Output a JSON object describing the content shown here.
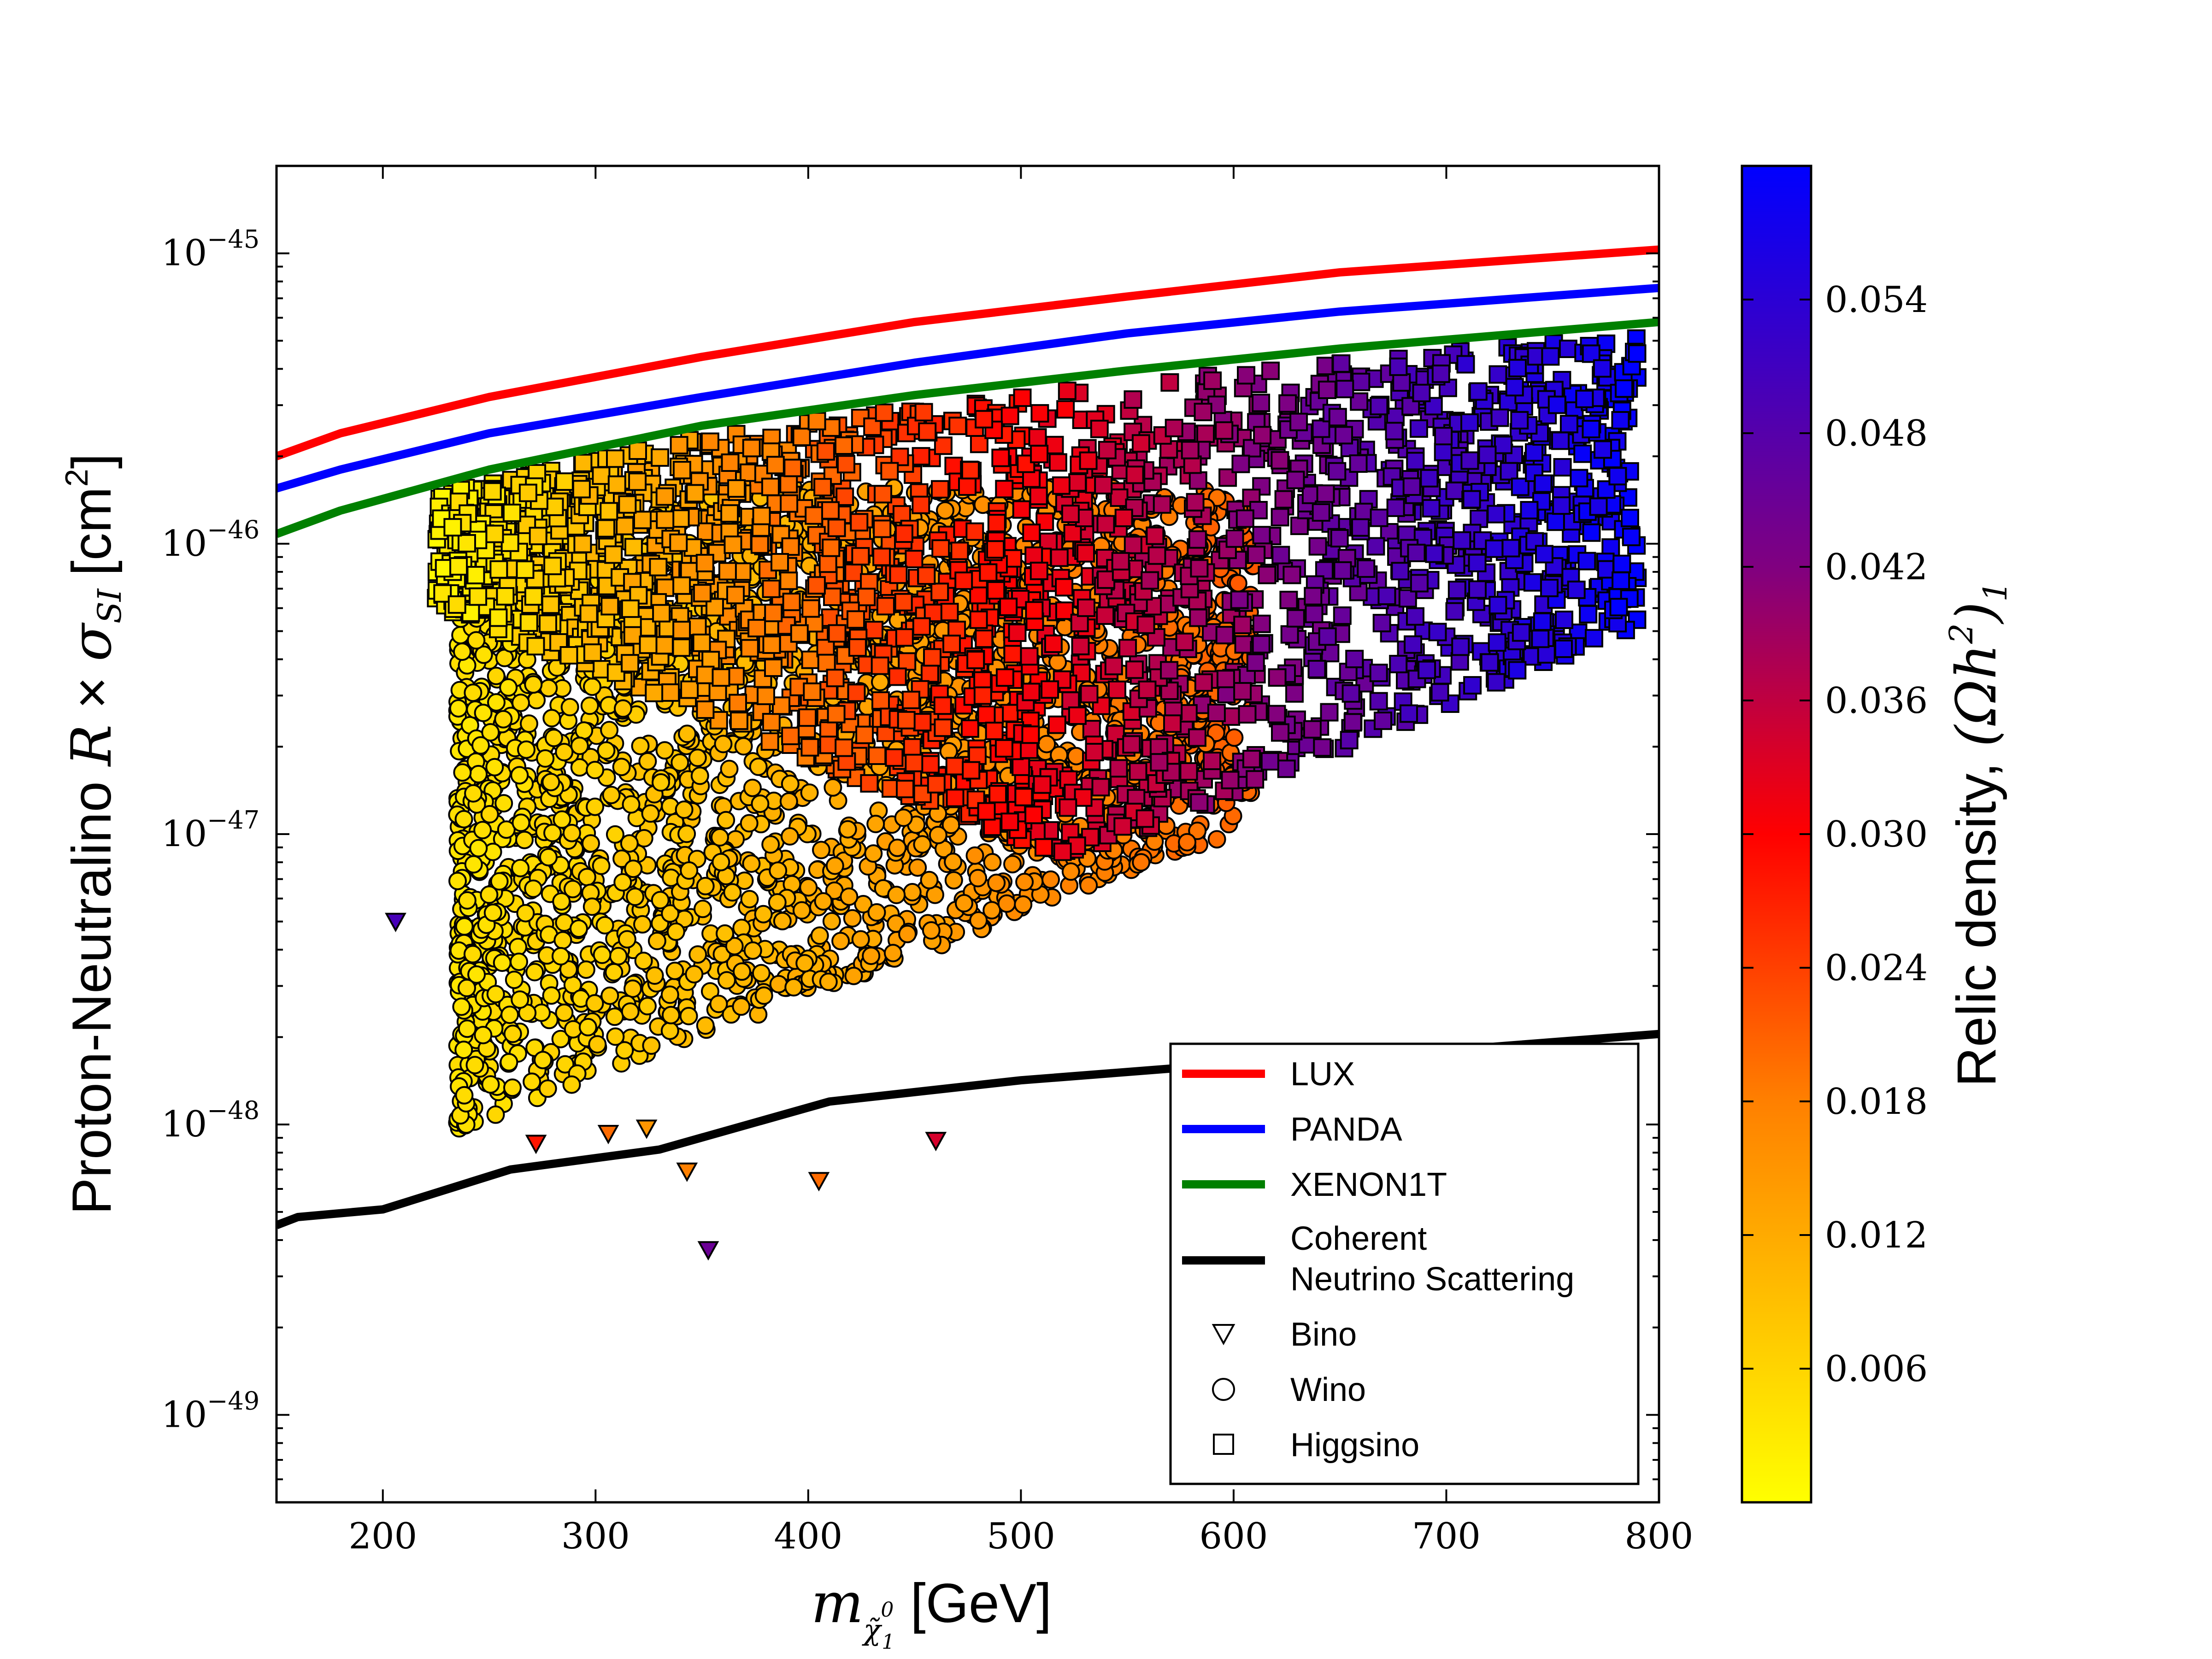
{
  "chart_data": {
    "type": "scatter",
    "xlabel_main": "m",
    "xlabel_sub": "χ̃",
    "xlabel_sub_sup": "0",
    "xlabel_sub_index": "1",
    "xlabel_unit": "[GeV]",
    "ylabel_text": "Proton-Neutralino",
    "ylabel_math_R": "R",
    "ylabel_math_times": "×",
    "ylabel_math_sigma": "σ",
    "ylabel_math_sub": "SI",
    "ylabel_unit": "[cm",
    "ylabel_unit_sup": "2",
    "ylabel_unit_close": "]",
    "yscale": "log",
    "xlim": [
      150,
      800
    ],
    "ylim": [
      5e-50,
      2e-45
    ],
    "xticks": [
      {
        "value": 200,
        "label": "200"
      },
      {
        "value": 300,
        "label": "300"
      },
      {
        "value": 400,
        "label": "400"
      },
      {
        "value": 500,
        "label": "500"
      },
      {
        "value": 600,
        "label": "600"
      },
      {
        "value": 700,
        "label": "700"
      },
      {
        "value": 800,
        "label": "800"
      }
    ],
    "yticks": [
      {
        "exp": -45,
        "base": "10",
        "sup": "−45"
      },
      {
        "exp": -46,
        "base": "10",
        "sup": "−46"
      },
      {
        "exp": -47,
        "base": "10",
        "sup": "−47"
      },
      {
        "exp": -48,
        "base": "10",
        "sup": "−48"
      },
      {
        "exp": -49,
        "base": "10",
        "sup": "−49"
      }
    ],
    "limit_curves": [
      {
        "name": "LUX",
        "color": "#ff0000",
        "points": [
          [
            150,
            2e-46
          ],
          [
            180,
            2.4e-46
          ],
          [
            250,
            3.2e-46
          ],
          [
            350,
            4.4e-46
          ],
          [
            450,
            5.8e-46
          ],
          [
            550,
            7.1e-46
          ],
          [
            650,
            8.6e-46
          ],
          [
            800,
            1.03e-45
          ]
        ]
      },
      {
        "name": "PANDA",
        "color": "#0000ff",
        "points": [
          [
            150,
            1.55e-46
          ],
          [
            180,
            1.8e-46
          ],
          [
            250,
            2.4e-46
          ],
          [
            350,
            3.2e-46
          ],
          [
            450,
            4.2e-46
          ],
          [
            550,
            5.3e-46
          ],
          [
            650,
            6.3e-46
          ],
          [
            800,
            7.6e-46
          ]
        ]
      },
      {
        "name": "XENON1T",
        "color": "#008000",
        "points": [
          [
            150,
            1.08e-46
          ],
          [
            180,
            1.3e-46
          ],
          [
            250,
            1.8e-46
          ],
          [
            350,
            2.55e-46
          ],
          [
            450,
            3.25e-46
          ],
          [
            550,
            3.95e-46
          ],
          [
            650,
            4.7e-46
          ],
          [
            800,
            5.8e-46
          ]
        ]
      },
      {
        "name": "Coherent Neutrino Scattering",
        "color": "#000000",
        "points": [
          [
            150,
            4.5e-49
          ],
          [
            160,
            4.8e-49
          ],
          [
            200,
            5.1e-49
          ],
          [
            260,
            7e-49
          ],
          [
            330,
            8.2e-49
          ],
          [
            410,
            1.2e-48
          ],
          [
            500,
            1.42e-48
          ],
          [
            600,
            1.62e-48
          ],
          [
            700,
            1.8e-48
          ],
          [
            800,
            2.05e-48
          ]
        ]
      }
    ],
    "scatter_series": [
      {
        "name": "Higgsino",
        "marker": "square",
        "x_range": [
          225,
          790
        ],
        "y_range_log": [
          -47.05,
          -45.4
        ]
      },
      {
        "name": "Wino",
        "marker": "circle",
        "x_range": [
          235,
          610
        ],
        "y_range_log": [
          -48.02,
          -45.8
        ]
      },
      {
        "name": "Bino",
        "marker": "triangle_down",
        "points": [
          {
            "x": 206,
            "y": 5e-48,
            "c": 0.05
          },
          {
            "x": 272,
            "y": 8.6e-49,
            "c": 0.028
          },
          {
            "x": 306,
            "y": 9.3e-49,
            "c": 0.02
          },
          {
            "x": 324,
            "y": 9.7e-49,
            "c": 0.015
          },
          {
            "x": 343,
            "y": 6.9e-49,
            "c": 0.018
          },
          {
            "x": 353,
            "y": 3.7e-49,
            "c": 0.045
          },
          {
            "x": 405,
            "y": 6.4e-49,
            "c": 0.02
          },
          {
            "x": 460,
            "y": 8.8e-49,
            "c": 0.034
          }
        ]
      }
    ],
    "legend": {
      "position": "lower right",
      "entries": [
        {
          "label": "LUX",
          "kind": "line",
          "color": "#ff0000"
        },
        {
          "label": "PANDA",
          "kind": "line",
          "color": "#0000ff"
        },
        {
          "label": "XENON1T",
          "kind": "line",
          "color": "#008000"
        },
        {
          "label": "Coherent",
          "label2": "Neutrino Scattering",
          "kind": "line",
          "color": "#000000"
        },
        {
          "label": "Bino",
          "kind": "marker",
          "marker": "triangle_down"
        },
        {
          "label": "Wino",
          "kind": "marker",
          "marker": "circle"
        },
        {
          "label": "Higgsino",
          "kind": "marker",
          "marker": "square"
        }
      ]
    },
    "colorbar": {
      "label_text": "Relic density,",
      "label_math": "(Ωh",
      "label_math_sup": "2",
      "label_math_close": ")",
      "label_math_sub": "1",
      "range": [
        0.0,
        0.06
      ],
      "ticks": [
        {
          "value": 0.006,
          "label": "0.006"
        },
        {
          "value": 0.012,
          "label": "0.012"
        },
        {
          "value": 0.018,
          "label": "0.018"
        },
        {
          "value": 0.024,
          "label": "0.024"
        },
        {
          "value": 0.03,
          "label": "0.030"
        },
        {
          "value": 0.036,
          "label": "0.036"
        },
        {
          "value": 0.042,
          "label": "0.042"
        },
        {
          "value": 0.048,
          "label": "0.048"
        },
        {
          "value": 0.054,
          "label": "0.054"
        }
      ],
      "colormap": [
        {
          "value": 0.0,
          "color": "#ffff00"
        },
        {
          "value": 0.3,
          "color": "#ff8000"
        },
        {
          "value": 0.5,
          "color": "#ff0000"
        },
        {
          "value": 0.7,
          "color": "#800080"
        },
        {
          "value": 1.0,
          "color": "#0000ff"
        }
      ]
    }
  }
}
